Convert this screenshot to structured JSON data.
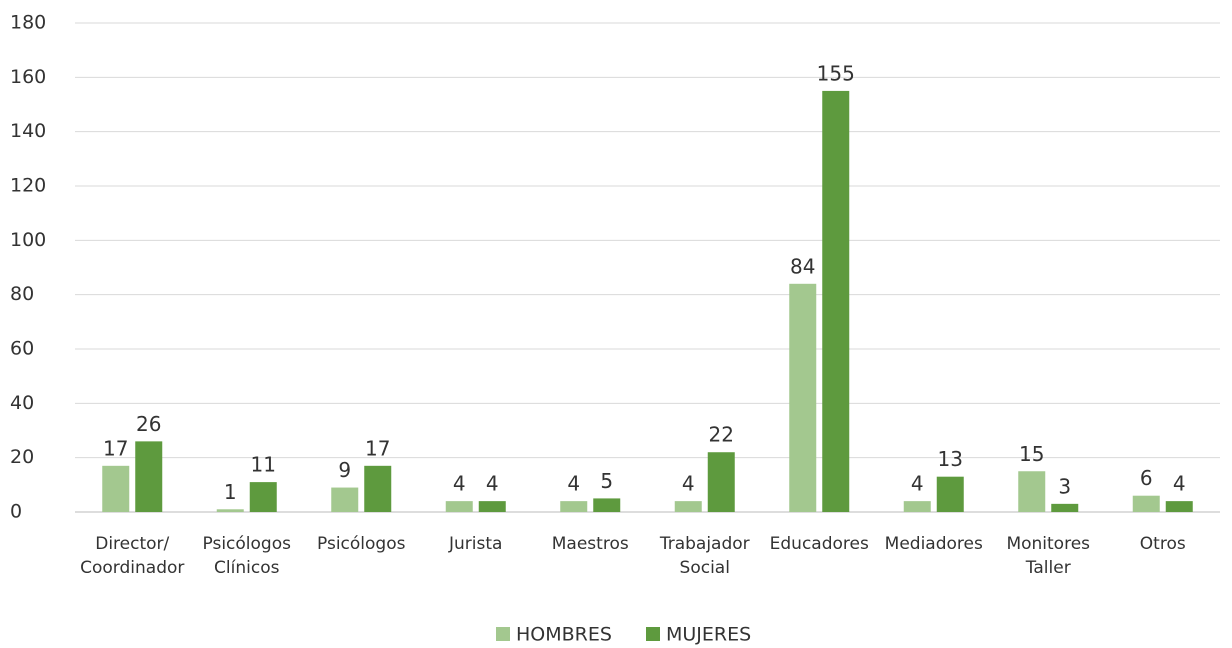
{
  "chart_data": {
    "type": "bar",
    "categories": [
      "Director/ Coordinador",
      "Psicólogos Clínicos",
      "Psicólogos",
      "Jurista",
      "Maestros",
      "Trabajador Social",
      "Educadores",
      "Mediadores",
      "Monitores Taller",
      "Otros"
    ],
    "series": [
      {
        "name": "HOMBRES",
        "color": "#a3c88f",
        "values": [
          17,
          1,
          9,
          4,
          4,
          4,
          84,
          4,
          15,
          6
        ]
      },
      {
        "name": "MUJERES",
        "color": "#5e9a3e",
        "values": [
          26,
          11,
          17,
          4,
          5,
          22,
          155,
          13,
          3,
          4
        ]
      }
    ],
    "ylim": [
      0,
      180
    ],
    "yticks": [
      0,
      20,
      40,
      60,
      80,
      100,
      120,
      140,
      160,
      180
    ],
    "grid": true,
    "legend": "bottom"
  }
}
